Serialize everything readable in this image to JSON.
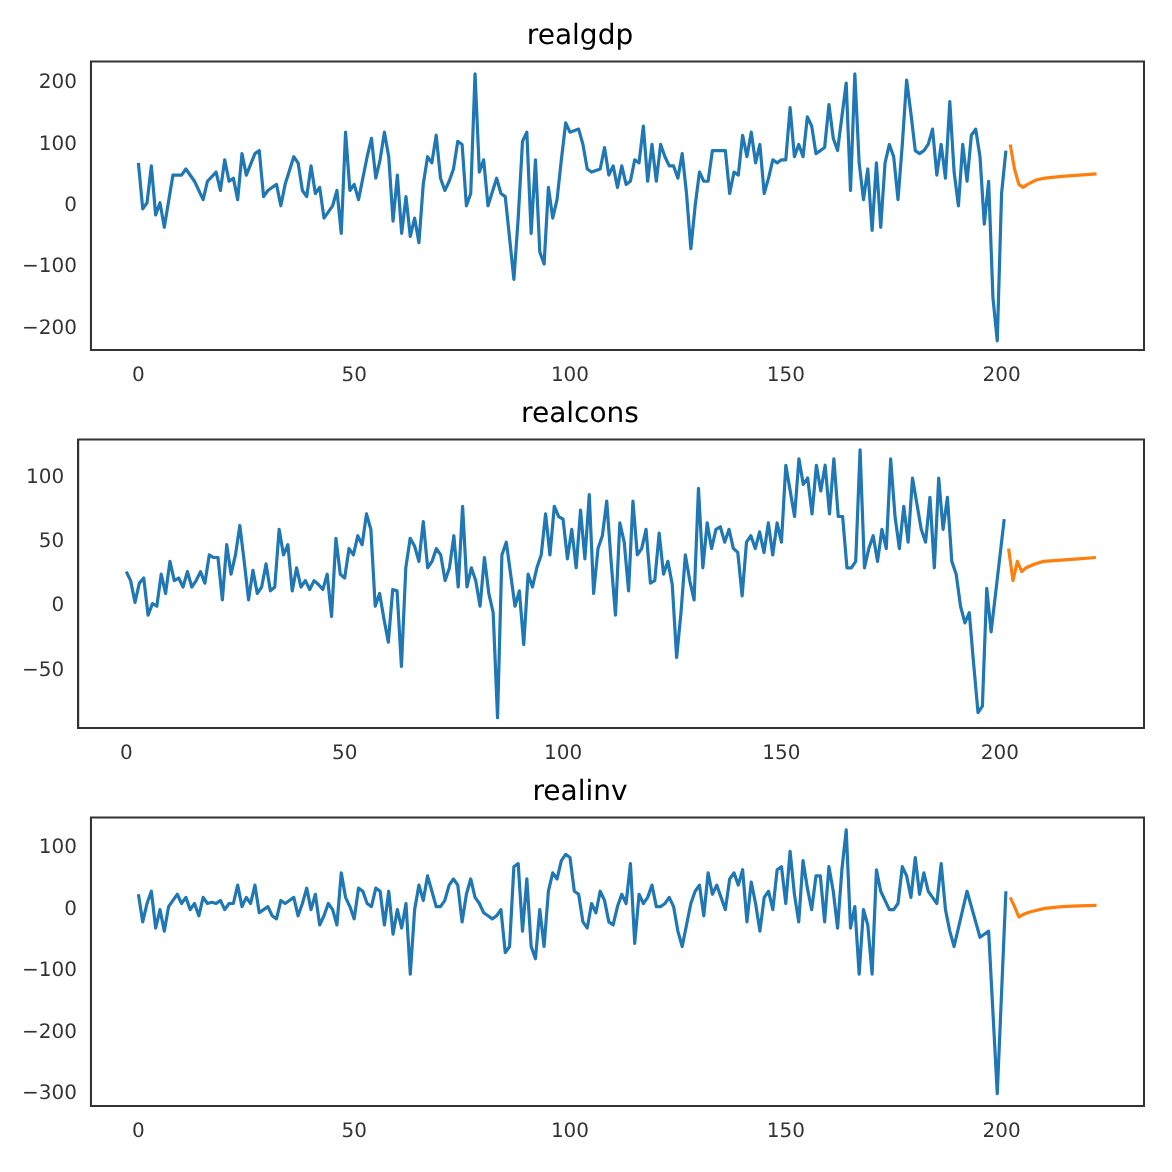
{
  "chart_data": [
    {
      "type": "line",
      "title": "realgdp",
      "xlim": [
        -11,
        233
      ],
      "xticks": [
        0,
        50,
        100,
        150,
        200
      ],
      "ylim": [
        -235,
        235
      ],
      "yticks": [
        -200,
        -100,
        0,
        100,
        200
      ],
      "grid": false,
      "legend": false,
      "marker": "none",
      "line_style": "solid",
      "series": [
        {
          "color": "#1f77b4",
          "x": [
            0,
            1,
            2,
            3,
            4,
            5,
            6,
            8,
            10,
            11,
            13,
            15,
            16,
            18,
            19,
            20,
            21,
            22,
            23,
            24,
            25,
            27,
            28,
            29,
            30,
            32,
            33,
            34,
            36,
            37,
            38,
            39,
            40,
            41,
            42,
            43,
            45,
            46,
            47,
            48,
            49,
            50,
            51,
            53,
            54,
            55,
            56,
            57,
            58,
            59,
            60,
            61,
            62,
            63,
            64,
            65,
            66,
            67,
            68,
            69,
            70,
            71,
            72,
            73,
            74,
            75,
            76,
            77,
            78,
            79,
            80,
            81,
            83,
            84,
            85,
            87,
            88,
            89,
            90,
            91,
            92,
            93,
            94,
            95,
            96,
            97,
            98,
            99,
            100,
            102,
            103,
            104,
            105,
            107,
            108,
            109,
            110,
            111,
            112,
            113,
            114,
            115,
            116,
            117,
            118,
            119,
            120,
            121,
            122,
            123,
            124,
            125,
            126,
            127,
            128,
            129,
            130,
            131,
            132,
            133,
            134,
            136,
            137,
            138,
            139,
            140,
            141,
            142,
            143,
            144,
            145,
            146,
            147,
            148,
            149,
            150,
            151,
            152,
            153,
            154,
            155,
            156,
            157,
            158,
            159,
            160,
            161,
            162,
            163,
            164,
            165,
            166,
            167,
            168,
            169,
            170,
            171,
            172,
            173,
            174,
            175,
            176,
            177,
            178,
            179,
            180,
            181,
            182,
            183,
            184,
            185,
            186,
            187,
            188,
            189,
            190,
            191,
            192,
            193,
            194,
            195,
            196,
            197,
            198,
            199,
            200,
            201
          ],
          "values": [
            70,
            -5,
            5,
            65,
            -15,
            5,
            -35,
            50,
            50,
            60,
            40,
            10,
            40,
            55,
            25,
            75,
            40,
            45,
            10,
            85,
            50,
            85,
            90,
            15,
            25,
            35,
            0,
            35,
            80,
            70,
            25,
            15,
            65,
            20,
            30,
            -20,
            0,
            25,
            -45,
            120,
            25,
            35,
            10,
            80,
            110,
            45,
            75,
            120,
            80,
            -25,
            50,
            -45,
            15,
            -50,
            -20,
            -60,
            35,
            80,
            70,
            115,
            45,
            25,
            40,
            60,
            105,
            100,
            0,
            20,
            215,
            55,
            75,
            0,
            45,
            20,
            15,
            -120,
            -20,
            105,
            120,
            -45,
            75,
            -75,
            -95,
            30,
            -20,
            10,
            75,
            135,
            120,
            125,
            100,
            60,
            55,
            60,
            95,
            50,
            65,
            30,
            65,
            35,
            40,
            75,
            70,
            130,
            40,
            100,
            40,
            100,
            80,
            65,
            65,
            45,
            85,
            20,
            -70,
            0,
            55,
            40,
            40,
            90,
            90,
            90,
            20,
            55,
            50,
            115,
            80,
            120,
            70,
            100,
            20,
            45,
            75,
            70,
            75,
            75,
            160,
            80,
            100,
            80,
            145,
            130,
            85,
            90,
            95,
            165,
            110,
            90,
            145,
            200,
            25,
            215,
            70,
            10,
            60,
            -40,
            70,
            -35,
            70,
            100,
            80,
            10,
            100,
            205,
            150,
            90,
            85,
            90,
            100,
            125,
            50,
            100,
            45,
            170,
            55,
            0,
            100,
            40,
            115,
            125,
            80,
            -30,
            40,
            -150,
            -220,
            20,
            90
          ]
        },
        {
          "color": "#ff7f0e",
          "x": [
            202,
            203,
            204,
            205,
            206,
            208,
            210,
            214,
            218,
            222
          ],
          "values": [
            100,
            60,
            35,
            30,
            35,
            42,
            45,
            48,
            50,
            52
          ]
        }
      ]
    },
    {
      "type": "line",
      "title": "realcons",
      "xlim": [
        -11,
        233
      ],
      "xticks": [
        0,
        50,
        100,
        150,
        200
      ],
      "ylim": [
        -95,
        130
      ],
      "yticks": [
        -50,
        0,
        50,
        100
      ],
      "grid": false,
      "legend": false,
      "marker": "none",
      "line_style": "solid",
      "series": [
        {
          "color": "#1f77b4",
          "x": [
            0,
            1,
            2,
            3,
            4,
            5,
            6,
            7,
            8,
            9,
            10,
            11,
            12,
            13,
            14,
            15,
            16,
            17,
            18,
            19,
            20,
            21,
            22,
            23,
            24,
            25,
            26,
            27,
            28,
            29,
            30,
            31,
            32,
            33,
            34,
            35,
            36,
            37,
            38,
            39,
            40,
            41,
            42,
            43,
            44,
            45,
            46,
            47,
            48,
            49,
            50,
            51,
            52,
            53,
            54,
            55,
            56,
            57,
            58,
            59,
            60,
            61,
            62,
            63,
            64,
            65,
            66,
            67,
            68,
            69,
            70,
            71,
            72,
            73,
            74,
            75,
            76,
            77,
            78,
            79,
            80,
            81,
            82,
            83,
            84,
            85,
            86,
            87,
            88,
            89,
            90,
            91,
            92,
            93,
            94,
            95,
            96,
            97,
            98,
            99,
            100,
            101,
            102,
            103,
            104,
            105,
            106,
            107,
            108,
            109,
            110,
            111,
            112,
            113,
            114,
            115,
            116,
            117,
            118,
            119,
            120,
            121,
            122,
            123,
            124,
            125,
            126,
            127,
            128,
            129,
            130,
            131,
            132,
            133,
            134,
            135,
            136,
            137,
            138,
            139,
            140,
            141,
            142,
            143,
            144,
            145,
            146,
            147,
            148,
            149,
            150,
            151,
            152,
            153,
            154,
            155,
            156,
            157,
            158,
            159,
            160,
            161,
            162,
            163,
            164,
            165,
            166,
            167,
            168,
            169,
            170,
            171,
            172,
            173,
            174,
            175,
            176,
            177,
            178,
            179,
            180,
            181,
            182,
            183,
            184,
            185,
            186,
            187,
            188,
            189,
            190,
            191,
            192,
            193,
            194,
            195,
            196,
            197,
            198,
            201
          ],
          "values": [
            27,
            20,
            3,
            18,
            22,
            -7,
            2,
            0,
            25,
            10,
            35,
            20,
            22,
            15,
            27,
            15,
            20,
            27,
            18,
            40,
            38,
            38,
            5,
            48,
            25,
            40,
            63,
            35,
            5,
            28,
            10,
            15,
            33,
            12,
            15,
            60,
            40,
            48,
            12,
            30,
            15,
            20,
            13,
            20,
            17,
            13,
            25,
            -8,
            53,
            25,
            22,
            45,
            40,
            55,
            48,
            72,
            60,
            0,
            10,
            -10,
            -28,
            13,
            12,
            -47,
            30,
            53,
            47,
            35,
            66,
            30,
            35,
            45,
            40,
            20,
            30,
            55,
            15,
            78,
            15,
            30,
            20,
            0,
            38,
            10,
            -5,
            -87,
            40,
            50,
            25,
            0,
            12,
            -30,
            25,
            15,
            30,
            40,
            72,
            40,
            78,
            70,
            68,
            37,
            60,
            30,
            75,
            37,
            87,
            10,
            45,
            55,
            82,
            35,
            -7,
            65,
            50,
            12,
            82,
            40,
            45,
            60,
            18,
            20,
            57,
            25,
            35,
            17,
            -40,
            -5,
            40,
            20,
            5,
            92,
            30,
            65,
            45,
            60,
            62,
            50,
            60,
            45,
            42,
            8,
            50,
            55,
            45,
            58,
            42,
            65,
            40,
            65,
            50,
            110,
            90,
            70,
            115,
            95,
            100,
            72,
            110,
            90,
            110,
            72,
            115,
            70,
            70,
            30,
            30,
            35,
            122,
            30,
            45,
            55,
            35,
            60,
            45,
            115,
            70,
            45,
            78,
            50,
            100,
            80,
            60,
            50,
            85,
            30,
            100,
            60,
            85,
            35,
            25,
            0,
            -13,
            -5,
            -45,
            -83,
            -78,
            14,
            -20,
            68
          ]
        },
        {
          "color": "#ff7f0e",
          "x": [
            202,
            203,
            204,
            205,
            206,
            208,
            210,
            214,
            218,
            222
          ],
          "values": [
            45,
            20,
            35,
            27,
            30,
            33,
            35,
            36,
            37,
            38
          ]
        }
      ]
    },
    {
      "type": "line",
      "title": "realinv",
      "xlim": [
        -11,
        233
      ],
      "xticks": [
        0,
        50,
        100,
        150,
        200
      ],
      "ylim": [
        -320,
        150
      ],
      "yticks": [
        -300,
        -200,
        -100,
        0,
        100
      ],
      "grid": false,
      "legend": false,
      "marker": "none",
      "line_style": "solid",
      "series": [
        {
          "color": "#1f77b4",
          "x": [
            0,
            1,
            2,
            3,
            4,
            5,
            6,
            7,
            8,
            9,
            10,
            11,
            12,
            13,
            14,
            15,
            16,
            17,
            18,
            19,
            20,
            21,
            22,
            23,
            24,
            25,
            26,
            27,
            28,
            29,
            30,
            31,
            32,
            33,
            34,
            35,
            36,
            37,
            38,
            39,
            40,
            41,
            42,
            43,
            44,
            45,
            46,
            47,
            48,
            49,
            50,
            51,
            52,
            53,
            54,
            55,
            56,
            57,
            58,
            59,
            60,
            61,
            62,
            63,
            64,
            65,
            66,
            67,
            68,
            69,
            70,
            71,
            72,
            73,
            74,
            75,
            76,
            77,
            78,
            79,
            80,
            81,
            82,
            83,
            84,
            85,
            86,
            87,
            88,
            89,
            90,
            91,
            92,
            93,
            94,
            95,
            96,
            97,
            98,
            99,
            100,
            101,
            102,
            103,
            104,
            105,
            106,
            107,
            108,
            109,
            110,
            111,
            112,
            113,
            114,
            115,
            116,
            117,
            118,
            119,
            120,
            121,
            122,
            123,
            124,
            125,
            126,
            127,
            128,
            129,
            130,
            131,
            132,
            133,
            134,
            135,
            136,
            137,
            138,
            139,
            140,
            141,
            142,
            143,
            144,
            145,
            146,
            147,
            148,
            149,
            150,
            151,
            152,
            153,
            154,
            155,
            156,
            157,
            158,
            159,
            160,
            161,
            162,
            163,
            164,
            165,
            166,
            167,
            168,
            169,
            170,
            171,
            172,
            173,
            174,
            175,
            176,
            177,
            178,
            179,
            180,
            181,
            182,
            183,
            184,
            185,
            186,
            187,
            188,
            189,
            192,
            194,
            195,
            196,
            197,
            199,
            201
          ],
          "values": [
            25,
            -20,
            10,
            30,
            -30,
            0,
            -35,
            5,
            15,
            25,
            10,
            20,
            0,
            10,
            -10,
            20,
            10,
            12,
            10,
            15,
            0,
            10,
            10,
            40,
            5,
            20,
            10,
            40,
            -5,
            0,
            5,
            -10,
            -15,
            15,
            10,
            15,
            20,
            -10,
            10,
            35,
            0,
            25,
            -25,
            -10,
            10,
            0,
            -25,
            60,
            20,
            5,
            -15,
            35,
            30,
            10,
            5,
            35,
            30,
            -25,
            30,
            -40,
            0,
            -30,
            10,
            -105,
            0,
            40,
            15,
            55,
            30,
            5,
            5,
            15,
            40,
            50,
            40,
            -20,
            25,
            50,
            20,
            10,
            -5,
            -10,
            -15,
            -10,
            0,
            -70,
            -60,
            70,
            75,
            -35,
            50,
            -60,
            -80,
            0,
            -60,
            30,
            60,
            50,
            80,
            90,
            85,
            30,
            25,
            -20,
            -30,
            10,
            -5,
            30,
            15,
            -20,
            -25,
            5,
            25,
            10,
            75,
            -55,
            25,
            10,
            20,
            40,
            5,
            5,
            10,
            20,
            5,
            -35,
            -60,
            -25,
            10,
            30,
            40,
            -10,
            60,
            25,
            40,
            20,
            0,
            50,
            60,
            40,
            65,
            -20,
            45,
            10,
            -35,
            20,
            30,
            0,
            65,
            70,
            10,
            95,
            25,
            -20,
            80,
            35,
            0,
            55,
            55,
            -20,
            70,
            30,
            -30,
            65,
            130,
            -30,
            5,
            -105,
            0,
            -25,
            -105,
            65,
            30,
            15,
            0,
            0,
            10,
            70,
            55,
            20,
            85,
            25,
            60,
            30,
            20,
            10,
            75,
            0,
            -35,
            -60,
            30,
            -20,
            -45,
            -40,
            -35,
            -300,
            30
          ]
        },
        {
          "color": "#ff7f0e",
          "x": [
            202,
            203,
            204,
            205,
            206,
            207,
            210,
            214,
            218,
            222
          ],
          "values": [
            20,
            5,
            -12,
            -8,
            -5,
            -3,
            2,
            5,
            6,
            7
          ]
        }
      ]
    }
  ]
}
